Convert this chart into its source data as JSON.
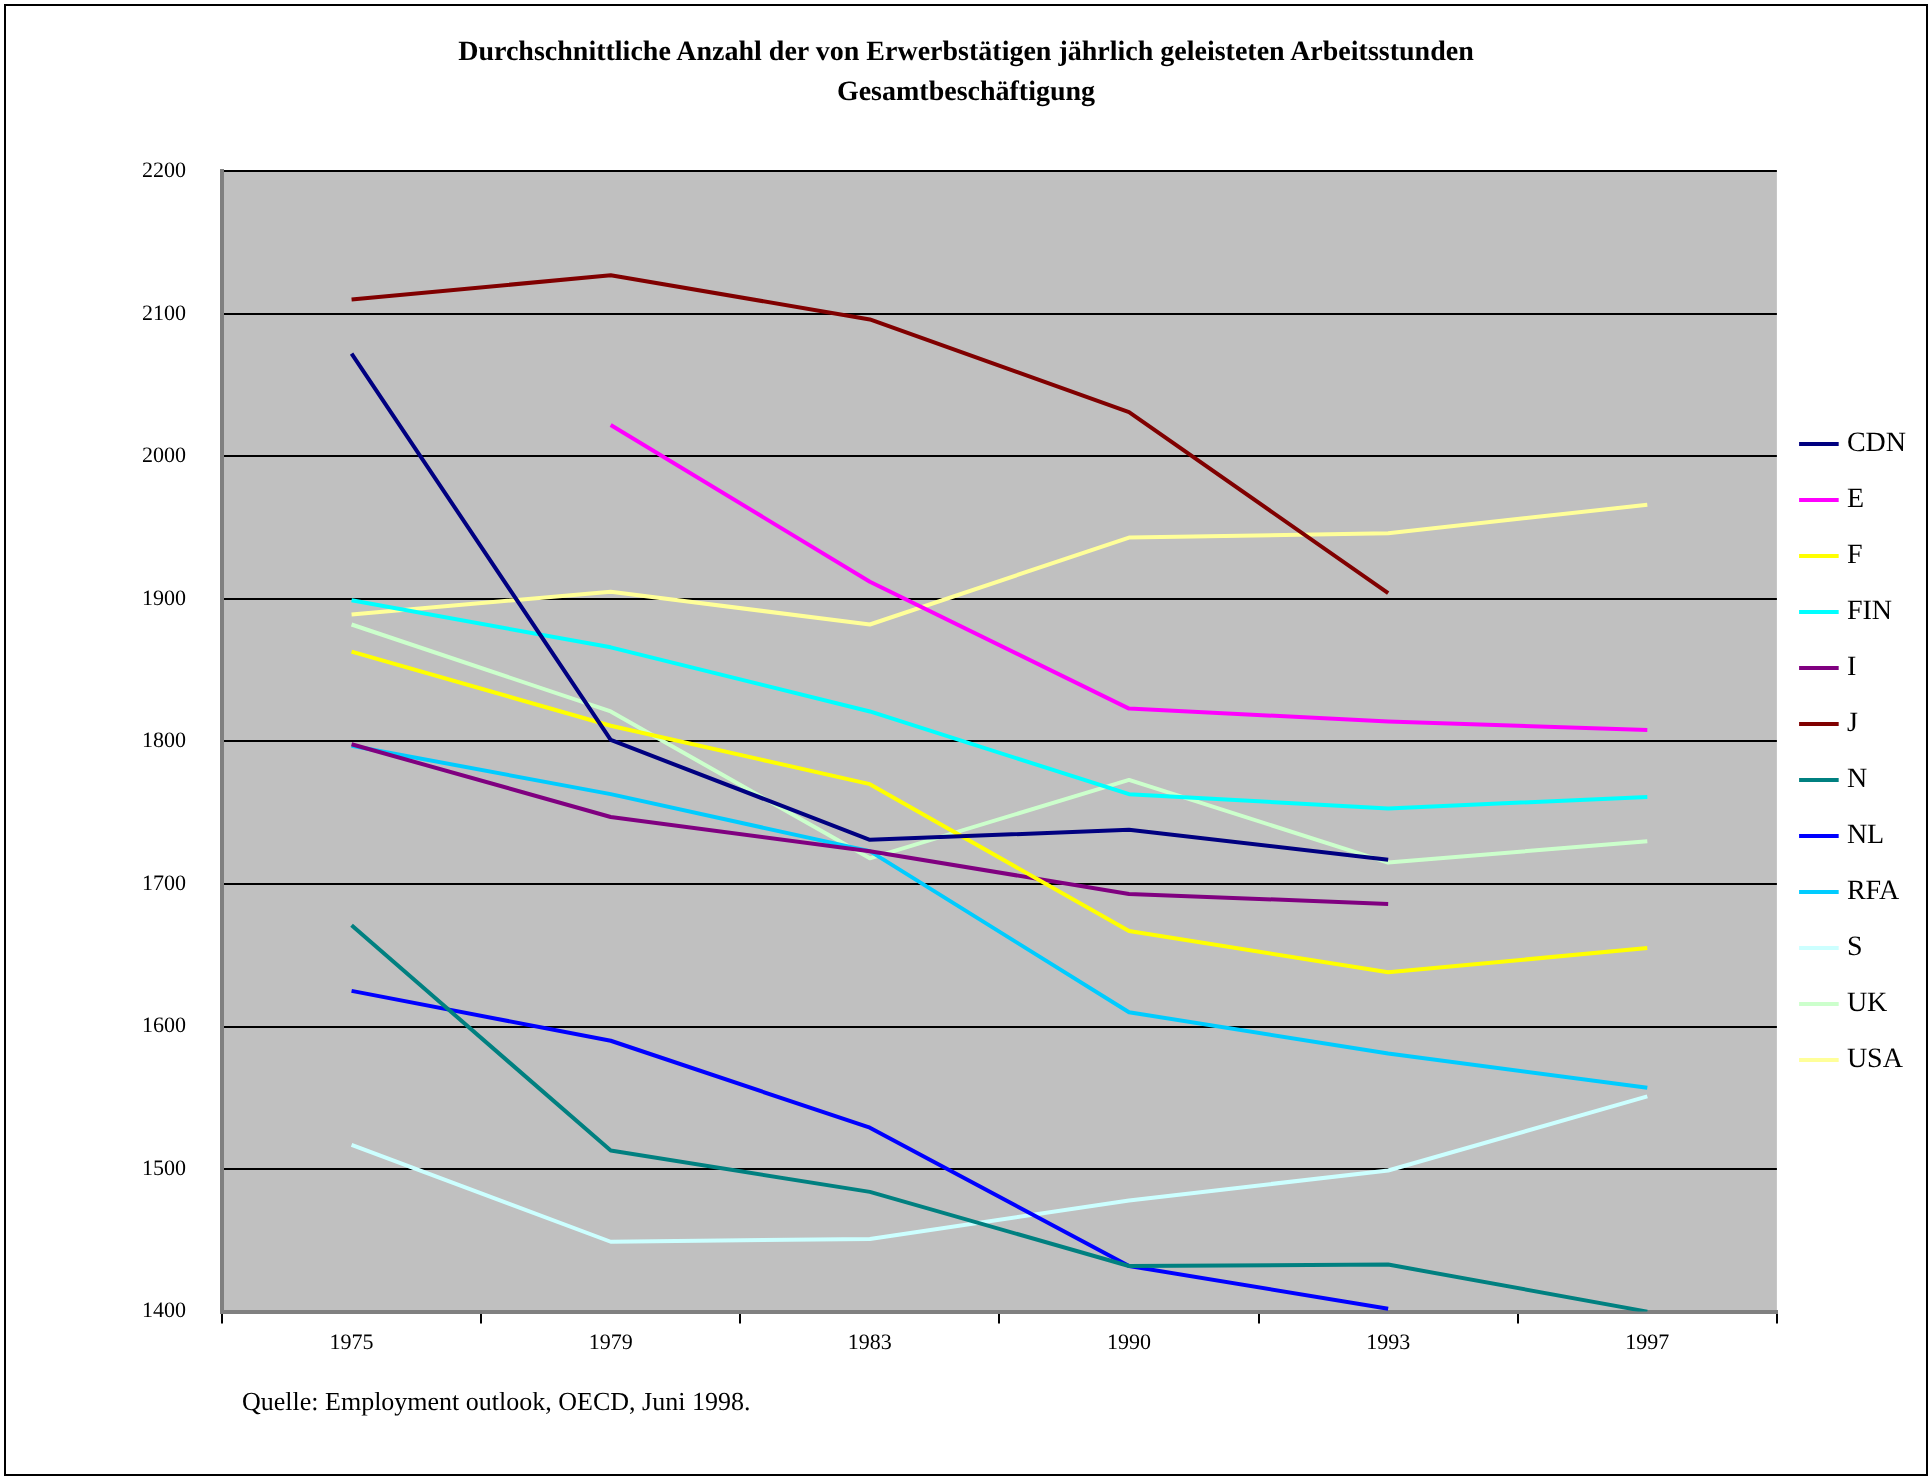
{
  "chart_data": {
    "type": "line",
    "title": "Durchschnittliche Anzahl der von Erwerbstätigen jährlich geleisteten Arbeitsstunden",
    "subtitle": "Gesamtbeschäftigung",
    "categories": [
      "1975",
      "1979",
      "1983",
      "1990",
      "1993",
      "1997"
    ],
    "ylim": [
      1400,
      2200
    ],
    "yticks": [
      1400,
      1500,
      1600,
      1700,
      1800,
      1900,
      2000,
      2100,
      2200
    ],
    "grid": "y",
    "legend": "right",
    "marker": "none",
    "annotations": [
      "Quelle: Employment outlook, OECD, Juni 1998."
    ],
    "series": [
      {
        "name": "CDN",
        "color": "#000080",
        "values": [
          2072,
          1801,
          1731,
          1738,
          1717,
          null
        ]
      },
      {
        "name": "E",
        "color": "#ff00ff",
        "values": [
          null,
          2022,
          1912,
          1823,
          1814,
          1808
        ]
      },
      {
        "name": "F",
        "color": "#ffff00",
        "values": [
          1863,
          1811,
          1770,
          1667,
          1638,
          1655
        ]
      },
      {
        "name": "FIN",
        "color": "#00ffff",
        "values": [
          1899,
          1866,
          1821,
          1763,
          1753,
          1761
        ]
      },
      {
        "name": "I",
        "color": "#800080",
        "values": [
          1798,
          1747,
          1723,
          1693,
          1686,
          null
        ]
      },
      {
        "name": "J",
        "color": "#800000",
        "values": [
          2110,
          2127,
          2096,
          2031,
          1904,
          null
        ]
      },
      {
        "name": "N",
        "color": "#008080",
        "values": [
          1671,
          1513,
          1484,
          1432,
          1433,
          1400
        ]
      },
      {
        "name": "NL",
        "color": "#0000ff",
        "values": [
          1625,
          1590,
          1529,
          1432,
          1402,
          null
        ]
      },
      {
        "name": "RFA",
        "color": "#00ccff",
        "values": [
          1797,
          1763,
          1723,
          1610,
          1581,
          1557
        ]
      },
      {
        "name": "S",
        "color": "#ccffff",
        "values": [
          1517,
          1449,
          1451,
          1478,
          1499,
          1551
        ]
      },
      {
        "name": "UK",
        "color": "#ccffcc",
        "values": [
          1882,
          1821,
          1718,
          1773,
          1715,
          1730
        ]
      },
      {
        "name": "USA",
        "color": "#ffff99",
        "values": [
          1889,
          1905,
          1882,
          1943,
          1946,
          1966
        ]
      }
    ]
  }
}
